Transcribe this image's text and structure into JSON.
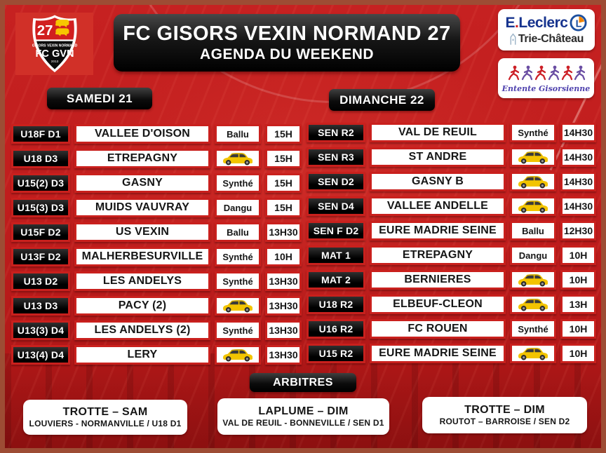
{
  "header": {
    "title": "FC GISORS VEXIN NORMAND 27",
    "subtitle": "AGENDA DU WEEKEND"
  },
  "badge": {
    "number": "27",
    "club_small": "GISORS VEXIN NORMAND",
    "club_name": "FC GVN",
    "year": "2013"
  },
  "sponsor": {
    "brand_e": "E",
    "brand_dot": ".",
    "brand_rest": "Leclerc",
    "logo_letter": "L",
    "location": "Trie-Château"
  },
  "partner": {
    "name": "Entente Gisorsienne"
  },
  "saturday": {
    "label": "SAMEDI 21",
    "rows": [
      {
        "category": "U18F D1",
        "team": "VALLEE D'OISON",
        "venue": "Ballu",
        "time": "15H"
      },
      {
        "category": "U18 D3",
        "team": "ETREPAGNY",
        "venue": "",
        "venue_icon": "car-icon",
        "time": "15H"
      },
      {
        "category": "U15(2) D3",
        "team": "GASNY",
        "venue": "Synthé",
        "time": "15H"
      },
      {
        "category": "U15(3) D3",
        "team": "MUIDS VAUVRAY",
        "venue": "Dangu",
        "time": "15H"
      },
      {
        "category": "U15F D2",
        "team": "US VEXIN",
        "venue": "Ballu",
        "time": "13H30"
      },
      {
        "category": "U13F D2",
        "team": "MALHERBESURVILLE",
        "venue": "Synthé",
        "time": "10H"
      },
      {
        "category": "U13 D2",
        "team": "LES ANDELYS",
        "venue": "Synthé",
        "time": "13H30"
      },
      {
        "category": "U13 D3",
        "team": "PACY (2)",
        "venue": "",
        "venue_icon": "car-icon",
        "time": "13H30"
      },
      {
        "category": "U13(3) D4",
        "team": "LES ANDELYS (2)",
        "venue": "Synthé",
        "time": "13H30"
      },
      {
        "category": "U13(4) D4",
        "team": "LERY",
        "venue": "",
        "venue_icon": "car-icon",
        "time": "13H30"
      }
    ]
  },
  "sunday": {
    "label": "DIMANCHE 22",
    "rows": [
      {
        "category": "SEN R2",
        "team": "VAL DE REUIL",
        "venue": "Synthé",
        "time": "14H30"
      },
      {
        "category": "SEN R3",
        "team": "ST ANDRE",
        "venue": "",
        "venue_icon": "car-icon",
        "time": "14H30"
      },
      {
        "category": "SEN D2",
        "team": "GASNY B",
        "venue": "",
        "venue_icon": "car-icon",
        "time": "14H30"
      },
      {
        "category": "SEN D4",
        "team": "VALLEE ANDELLE",
        "venue": "",
        "venue_icon": "car-icon",
        "time": "14H30"
      },
      {
        "category": "SEN F D2",
        "team": "EURE MADRIE SEINE",
        "venue": "Ballu",
        "time": "12H30"
      },
      {
        "category": "MAT 1",
        "team": "ETREPAGNY",
        "venue": "Dangu",
        "time": "10H"
      },
      {
        "category": "MAT 2",
        "team": "BERNIERES",
        "venue": "",
        "venue_icon": "car-icon",
        "time": "10H"
      },
      {
        "category": "U18 R2",
        "team": "ELBEUF-CLEON",
        "venue": "",
        "venue_icon": "car-icon",
        "time": "13H"
      },
      {
        "category": "U16 R2",
        "team": "FC ROUEN",
        "venue": "Synthé",
        "time": "10H"
      },
      {
        "category": "U15 R2",
        "team": "EURE MADRIE SEINE",
        "venue": "",
        "venue_icon": "car-icon",
        "time": "10H"
      }
    ]
  },
  "referees": {
    "label": "ARBITRES",
    "entries": [
      {
        "name": "TROTTE – SAM",
        "detail": "LOUVIERS - NORMANVILLE / U18 D1"
      },
      {
        "name": "LAPLUME – DIM",
        "detail": "VAL DE REUIL - BONNEVILLE / SEN D1"
      },
      {
        "name": "TROTTE – DIM",
        "detail": "ROUTOT – BARROISE / SEN D2"
      }
    ]
  },
  "colors": {
    "background_red": "#c01d1d",
    "cell_border_red": "#c9201d",
    "frame_brown": "#9d4c34",
    "header_black": "#0c0c0c",
    "badge_red": "#d13028",
    "car_yellow": "#f2c400",
    "leclerc_blue": "#16338e",
    "leclerc_orange": "#f08300",
    "entente_red": "#cc2027",
    "entente_purple": "#6a4ea3"
  }
}
